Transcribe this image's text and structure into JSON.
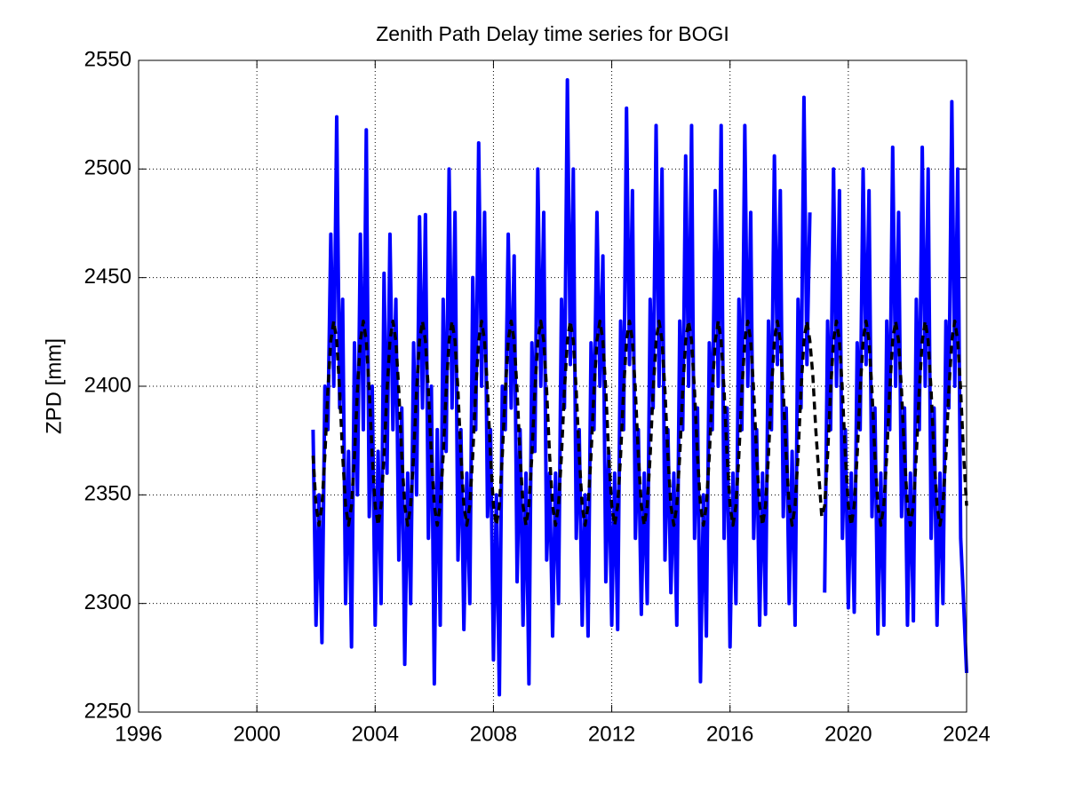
{
  "chart_data": {
    "type": "line",
    "title": "Zenith Path Delay time series for BOGI",
    "y_label": "ZPD [mm]",
    "xlim": [
      1996,
      2024
    ],
    "xticks": [
      1996,
      2000,
      2004,
      2008,
      2012,
      2016,
      2020,
      2024
    ],
    "ylim": [
      2250,
      2550
    ],
    "yticks": [
      2250,
      2300,
      2350,
      2400,
      2450,
      2500,
      2550
    ],
    "grid": true,
    "x": [
      2001.9,
      2002.0,
      2002.1,
      2002.2,
      2002.3,
      2002.4,
      2002.5,
      2002.6,
      2002.7,
      2002.8,
      2002.9,
      2003.0,
      2003.1,
      2003.2,
      2003.3,
      2003.4,
      2003.5,
      2003.6,
      2003.7,
      2003.8,
      2003.9,
      2004.0,
      2004.1,
      2004.2,
      2004.3,
      2004.4,
      2004.5,
      2004.6,
      2004.7,
      2004.8,
      2004.9,
      2005.0,
      2005.1,
      2005.2,
      2005.3,
      2005.4,
      2005.5,
      2005.6,
      2005.7,
      2005.8,
      2005.9,
      2006.0,
      2006.1,
      2006.2,
      2006.3,
      2006.4,
      2006.5,
      2006.6,
      2006.7,
      2006.8,
      2006.9,
      2007.0,
      2007.1,
      2007.2,
      2007.3,
      2007.4,
      2007.5,
      2007.6,
      2007.7,
      2007.8,
      2007.9,
      2008.0,
      2008.1,
      2008.2,
      2008.3,
      2008.4,
      2008.5,
      2008.6,
      2008.7,
      2008.8,
      2008.9,
      2009.0,
      2009.1,
      2009.2,
      2009.3,
      2009.4,
      2009.5,
      2009.6,
      2009.7,
      2009.8,
      2009.9,
      2010.0,
      2010.1,
      2010.2,
      2010.3,
      2010.4,
      2010.5,
      2010.6,
      2010.7,
      2010.8,
      2010.9,
      2011.0,
      2011.1,
      2011.2,
      2011.3,
      2011.4,
      2011.5,
      2011.6,
      2011.7,
      2011.8,
      2011.9,
      2012.0,
      2012.1,
      2012.2,
      2012.3,
      2012.4,
      2012.5,
      2012.6,
      2012.7,
      2012.8,
      2012.9,
      2013.0,
      2013.1,
      2013.2,
      2013.3,
      2013.4,
      2013.5,
      2013.6,
      2013.7,
      2013.8,
      2013.9,
      2014.0,
      2014.1,
      2014.2,
      2014.3,
      2014.4,
      2014.5,
      2014.6,
      2014.7,
      2014.8,
      2014.9,
      2015.0,
      2015.1,
      2015.2,
      2015.3,
      2015.4,
      2015.5,
      2015.6,
      2015.7,
      2015.8,
      2015.9,
      2016.0,
      2016.1,
      2016.2,
      2016.3,
      2016.4,
      2016.5,
      2016.6,
      2016.7,
      2016.8,
      2016.9,
      2017.0,
      2017.1,
      2017.2,
      2017.3,
      2017.4,
      2017.5,
      2017.6,
      2017.7,
      2017.8,
      2017.9,
      2018.0,
      2018.1,
      2018.2,
      2018.3,
      2018.4,
      2018.5,
      2018.6,
      2018.7,
      2018.8,
      2018.9,
      2019.0,
      2019.1,
      2019.2,
      2019.3,
      2019.4,
      2019.5,
      2019.6,
      2019.7,
      2019.8,
      2019.9,
      2020.0,
      2020.1,
      2020.2,
      2020.3,
      2020.4,
      2020.5,
      2020.6,
      2020.7,
      2020.8,
      2020.9,
      2021.0,
      2021.1,
      2021.2,
      2021.3,
      2021.4,
      2021.5,
      2021.6,
      2021.7,
      2021.8,
      2021.9,
      2022.0,
      2022.1,
      2022.2,
      2022.3,
      2022.4,
      2022.5,
      2022.6,
      2022.7,
      2022.8,
      2022.9,
      2023.0,
      2023.1,
      2023.2,
      2023.3,
      2023.4,
      2023.5,
      2023.6,
      2023.7,
      2023.8,
      2023.9,
      2024.0
    ],
    "series": [
      {
        "color": "#0000ff",
        "style": "solid",
        "values": [
          2380,
          2290,
          2350,
          2282,
          2400,
          2380,
          2470,
          2400,
          2524,
          2390,
          2440,
          2300,
          2370,
          2280,
          2420,
          2350,
          2470,
          2380,
          2518,
          2340,
          2400,
          2290,
          2370,
          2300,
          2452,
          2360,
          2470,
          2380,
          2440,
          2320,
          2390,
          2272,
          2360,
          2300,
          2420,
          2350,
          2478,
          2390,
          2479,
          2330,
          2400,
          2263,
          2380,
          2290,
          2440,
          2370,
          2500,
          2390,
          2480,
          2320,
          2380,
          2288,
          2360,
          2300,
          2450,
          2380,
          2512,
          2400,
          2480,
          2340,
          2380,
          2274,
          2350,
          2258,
          2400,
          2380,
          2470,
          2390,
          2460,
          2310,
          2380,
          2290,
          2360,
          2263,
          2420,
          2370,
          2500,
          2400,
          2480,
          2320,
          2360,
          2285,
          2360,
          2300,
          2440,
          2390,
          2541,
          2410,
          2500,
          2330,
          2380,
          2290,
          2350,
          2285,
          2420,
          2380,
          2480,
          2400,
          2460,
          2310,
          2370,
          2290,
          2360,
          2288,
          2430,
          2380,
          2528,
          2410,
          2490,
          2330,
          2380,
          2295,
          2360,
          2300,
          2440,
          2390,
          2520,
          2400,
          2500,
          2320,
          2380,
          2305,
          2360,
          2290,
          2430,
          2380,
          2506,
          2400,
          2520,
          2330,
          2390,
          2264,
          2350,
          2285,
          2420,
          2380,
          2490,
          2400,
          2520,
          2330,
          2390,
          2280,
          2360,
          2300,
          2440,
          2380,
          2520,
          2400,
          2480,
          2330,
          2380,
          2290,
          2360,
          2295,
          2430,
          2380,
          2506,
          2410,
          2490,
          2340,
          2390,
          2300,
          2370,
          2290,
          2440,
          2390,
          2533,
          2410,
          2480,
          null,
          null,
          null,
          null,
          2305,
          2430,
          2380,
          2500,
          2400,
          2490,
          2330,
          2380,
          2298,
          2360,
          2296,
          2420,
          2380,
          2500,
          2410,
          2490,
          2340,
          2390,
          2286,
          2360,
          2290,
          2430,
          2380,
          2510,
          2400,
          2480,
          2340,
          2390,
          2290,
          2360,
          2292,
          2440,
          2380,
          2510,
          2400,
          2500,
          2330,
          2390,
          2290,
          2360,
          2300,
          2430,
          2390,
          2531,
          2400,
          2500,
          2330,
          2300,
          2268
        ]
      },
      {
        "color": "#000000",
        "style": "dashed",
        "values": [
          2368,
          2345,
          2336,
          2345,
          2368,
          2398,
          2421,
          2430,
          2421,
          2398,
          2368,
          2345,
          2336,
          2345,
          2368,
          2398,
          2421,
          2430,
          2421,
          2398,
          2368,
          2345,
          2336,
          2345,
          2368,
          2398,
          2421,
          2430,
          2421,
          2398,
          2368,
          2345,
          2336,
          2345,
          2368,
          2398,
          2421,
          2430,
          2421,
          2398,
          2368,
          2345,
          2336,
          2345,
          2368,
          2398,
          2421,
          2430,
          2421,
          2398,
          2368,
          2345,
          2336,
          2345,
          2368,
          2398,
          2421,
          2430,
          2421,
          2398,
          2368,
          2345,
          2336,
          2345,
          2368,
          2398,
          2421,
          2430,
          2421,
          2398,
          2368,
          2345,
          2336,
          2345,
          2368,
          2398,
          2421,
          2430,
          2421,
          2398,
          2368,
          2345,
          2336,
          2345,
          2368,
          2398,
          2421,
          2430,
          2421,
          2398,
          2368,
          2345,
          2336,
          2345,
          2368,
          2398,
          2421,
          2430,
          2421,
          2398,
          2368,
          2345,
          2336,
          2345,
          2368,
          2398,
          2421,
          2430,
          2421,
          2398,
          2368,
          2345,
          2336,
          2345,
          2368,
          2398,
          2421,
          2430,
          2421,
          2398,
          2368,
          2345,
          2336,
          2345,
          2368,
          2398,
          2421,
          2430,
          2421,
          2398,
          2368,
          2345,
          2336,
          2345,
          2368,
          2398,
          2421,
          2430,
          2421,
          2398,
          2368,
          2345,
          2336,
          2345,
          2368,
          2398,
          2421,
          2430,
          2421,
          2398,
          2368,
          2345,
          2336,
          2345,
          2368,
          2398,
          2421,
          2430,
          2421,
          2398,
          2368,
          2345,
          2336,
          2345,
          2368,
          2398,
          2421,
          2430,
          2421,
          2405,
          2380,
          2360,
          2340,
          2345,
          2368,
          2398,
          2421,
          2430,
          2421,
          2398,
          2368,
          2345,
          2336,
          2345,
          2368,
          2398,
          2421,
          2430,
          2421,
          2398,
          2368,
          2345,
          2336,
          2345,
          2368,
          2398,
          2421,
          2430,
          2421,
          2398,
          2368,
          2345,
          2336,
          2345,
          2368,
          2398,
          2421,
          2430,
          2421,
          2398,
          2368,
          2345,
          2336,
          2345,
          2368,
          2398,
          2421,
          2430,
          2421,
          2398,
          2368,
          2345
        ]
      }
    ]
  }
}
